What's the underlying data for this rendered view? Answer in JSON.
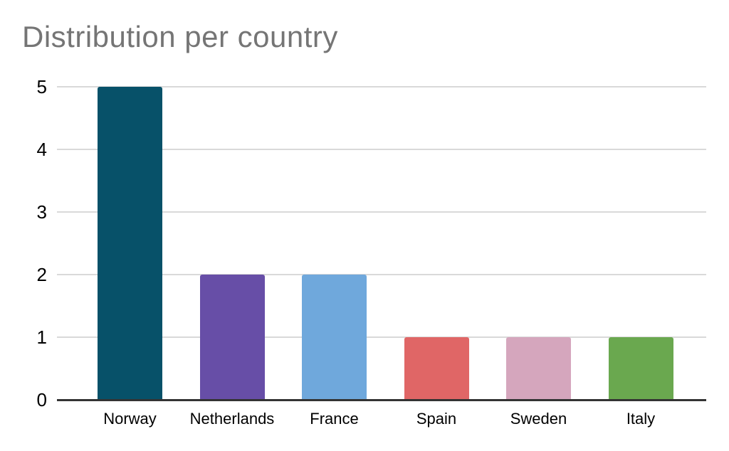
{
  "chart_data": {
    "type": "bar",
    "title": "Distribution per country",
    "categories": [
      "Norway",
      "Netherlands",
      "France",
      "Spain",
      "Sweden",
      "Italy"
    ],
    "values": [
      5,
      2,
      2,
      1,
      1,
      1
    ],
    "bar_colors": [
      "#075169",
      "#674ea7",
      "#6fa8dc",
      "#e06666",
      "#d5a6bd",
      "#6aa84f"
    ],
    "xlabel": "",
    "ylabel": "",
    "ylim": [
      0,
      5
    ],
    "yticks": [
      0,
      1,
      2,
      3,
      4,
      5
    ],
    "grid": true,
    "legend": "none",
    "colors": {
      "title": "#757575",
      "gridline": "#d9d9d9",
      "axis": "#333333",
      "tick_labels": "#000000",
      "background": "#ffffff"
    }
  }
}
